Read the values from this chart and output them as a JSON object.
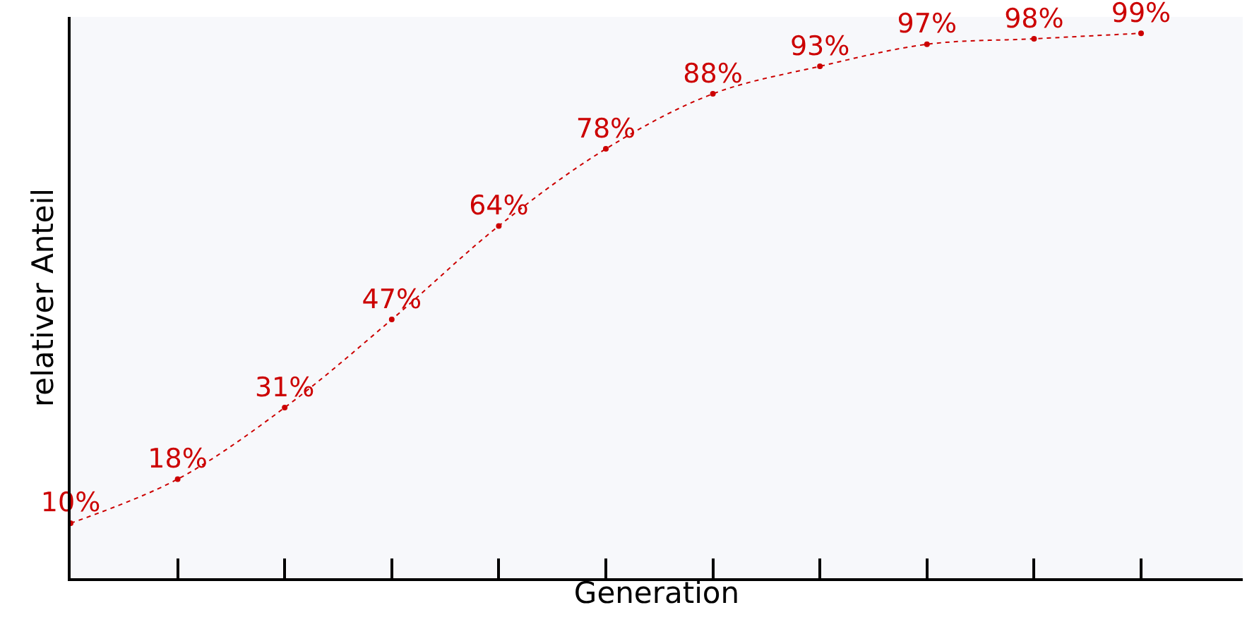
{
  "chart_data": {
    "type": "line",
    "xlabel": "Generation",
    "ylabel": "relativer Anteil",
    "categories": [
      null,
      null,
      null,
      null,
      null,
      null,
      null,
      null,
      null,
      null,
      null
    ],
    "series": [
      {
        "color": "#cc0000",
        "values": [
          10,
          18,
          31,
          47,
          64,
          78,
          88,
          93,
          97,
          98,
          99
        ],
        "value_labels": [
          "10%",
          "18%",
          "31%",
          "47%",
          "64%",
          "78%",
          "88%",
          "93%",
          "97%",
          "98%",
          "99%"
        ]
      }
    ],
    "tick_labels": false,
    "grid": false,
    "marker": "circle",
    "line_style": "dotted"
  }
}
